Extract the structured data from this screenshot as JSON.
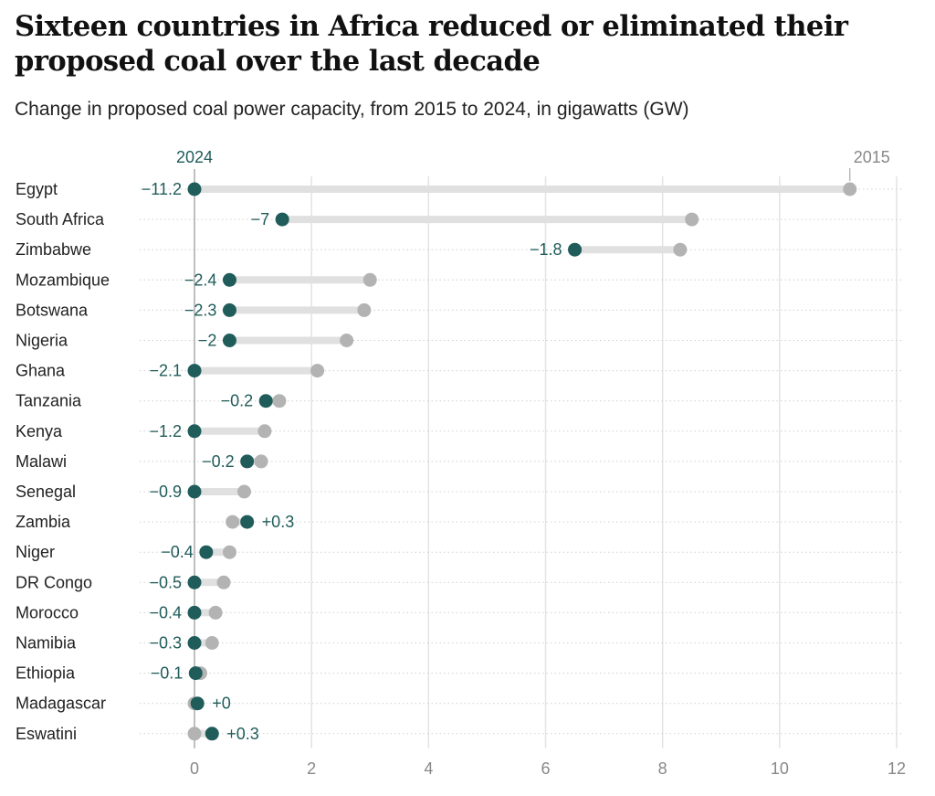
{
  "title": "Sixteen countries in Africa reduced or eliminated their proposed coal over the last decade",
  "subtitle": "Change in proposed coal power capacity, from 2015 to 2024, in gigawatts (GW)",
  "chart_data": {
    "type": "dumbbell",
    "title": "Sixteen countries in Africa reduced or eliminated their proposed coal over the last decade",
    "subtitle": "Change in proposed coal power capacity, from 2015 to 2024, in gigawatts (GW)",
    "xlim": [
      0,
      12
    ],
    "xticks": [
      0,
      2,
      4,
      6,
      8,
      10,
      12
    ],
    "series_labels": {
      "y2024": "2024",
      "y2015": "2015"
    },
    "colors": {
      "y2024": "#1f5c5a",
      "y2015": "#b3b3b3",
      "bar": "#e0e0e0"
    },
    "rows": [
      {
        "country": "Egypt",
        "y2015": 11.2,
        "y2024": 0,
        "change": "−11.2"
      },
      {
        "country": "South Africa",
        "y2015": 8.5,
        "y2024": 1.5,
        "change": "−7"
      },
      {
        "country": "Zimbabwe",
        "y2015": 8.3,
        "y2024": 6.5,
        "change": "−1.8"
      },
      {
        "country": "Mozambique",
        "y2015": 3.0,
        "y2024": 0.6,
        "change": "−2.4"
      },
      {
        "country": "Botswana",
        "y2015": 2.9,
        "y2024": 0.6,
        "change": "−2.3"
      },
      {
        "country": "Nigeria",
        "y2015": 2.6,
        "y2024": 0.6,
        "change": "−2"
      },
      {
        "country": "Ghana",
        "y2015": 2.1,
        "y2024": 0,
        "change": "−2.1"
      },
      {
        "country": "Tanzania",
        "y2015": 1.45,
        "y2024": 1.22,
        "change": "−0.2"
      },
      {
        "country": "Kenya",
        "y2015": 1.2,
        "y2024": 0,
        "change": "−1.2"
      },
      {
        "country": "Malawi",
        "y2015": 1.14,
        "y2024": 0.9,
        "change": "−0.2"
      },
      {
        "country": "Senegal",
        "y2015": 0.85,
        "y2024": 0,
        "change": "−0.9"
      },
      {
        "country": "Zambia",
        "y2015": 0.65,
        "y2024": 0.9,
        "change": "+0.3"
      },
      {
        "country": "Niger",
        "y2015": 0.6,
        "y2024": 0.2,
        "change": "−0.4"
      },
      {
        "country": "DR Congo",
        "y2015": 0.5,
        "y2024": 0,
        "change": "−0.5"
      },
      {
        "country": "Morocco",
        "y2015": 0.36,
        "y2024": 0,
        "change": "−0.4"
      },
      {
        "country": "Namibia",
        "y2015": 0.3,
        "y2024": 0,
        "change": "−0.3"
      },
      {
        "country": "Ethiopia",
        "y2015": 0.1,
        "y2024": 0.02,
        "change": "−0.1"
      },
      {
        "country": "Madagascar",
        "y2015": 0,
        "y2024": 0.05,
        "change": "+0"
      },
      {
        "country": "Eswatini",
        "y2015": 0,
        "y2024": 0.3,
        "change": "+0.3"
      }
    ]
  }
}
